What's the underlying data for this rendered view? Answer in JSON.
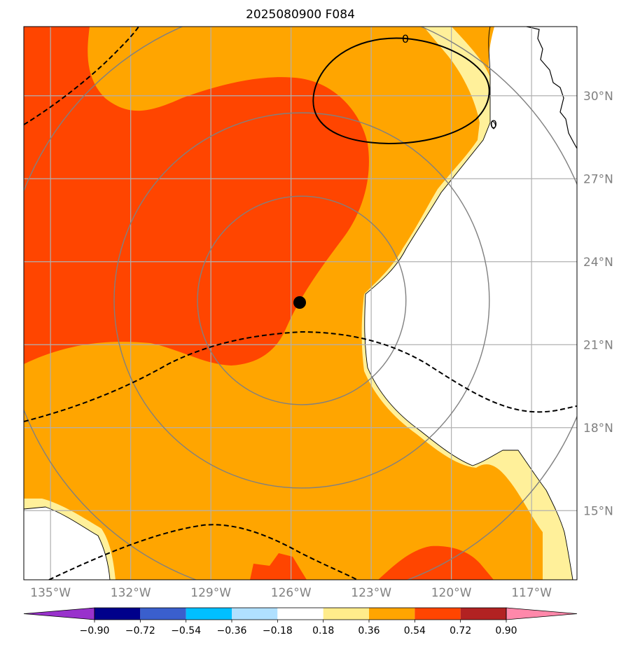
{
  "title": "2025080900 F084",
  "chart_data": {
    "type": "map-contour",
    "title": "2025080900 F084",
    "projection": "lat-lon",
    "extent": {
      "lon": [
        -136.0,
        -115.3
      ],
      "lat": [
        12.5,
        32.5
      ]
    },
    "lon_ticks": [
      -135,
      -132,
      -129,
      -126,
      -123,
      -120,
      -117
    ],
    "lon_tick_labels": [
      "135°W",
      "132°W",
      "129°W",
      "126°W",
      "123°W",
      "120°W",
      "117°W"
    ],
    "lat_ticks": [
      15,
      18,
      21,
      24,
      27,
      30
    ],
    "lat_tick_labels": [
      "15°N",
      "18°N",
      "21°N",
      "24°N",
      "27°N",
      "30°N"
    ],
    "grid": true,
    "center": {
      "lon": -125.6,
      "lat": 22.6
    },
    "range_rings_deg": [
      3,
      5.4,
      8.6
    ],
    "colorbar": {
      "levels": [
        -0.9,
        -0.72,
        -0.54,
        -0.36,
        -0.18,
        0.18,
        0.36,
        0.54,
        0.72,
        0.9
      ],
      "tick_labels": [
        "−0.90",
        "−0.72",
        "−0.54",
        "−0.36",
        "−0.18",
        "0.18",
        "0.36",
        "0.54",
        "0.72",
        "0.90"
      ],
      "colors": [
        "#9932cc",
        "#00008b",
        "#3a5fcd",
        "#00bfff",
        "#b0e0ff",
        "#ffffff",
        "#ffec8b",
        "#ffa500",
        "#ff4500",
        "#b22222",
        "#ff88aa"
      ],
      "extend": "both"
    },
    "contour_labels": [
      "0",
      "0"
    ],
    "fill_colors": {
      "land": "#ffffff",
      "light": "#fff09a",
      "orange": "#ffa500",
      "red": "#ff4500"
    },
    "line_colors": {
      "contour": "#000000",
      "grid": "#b0b0b0",
      "rings": "#808080",
      "center": "#000000"
    }
  }
}
